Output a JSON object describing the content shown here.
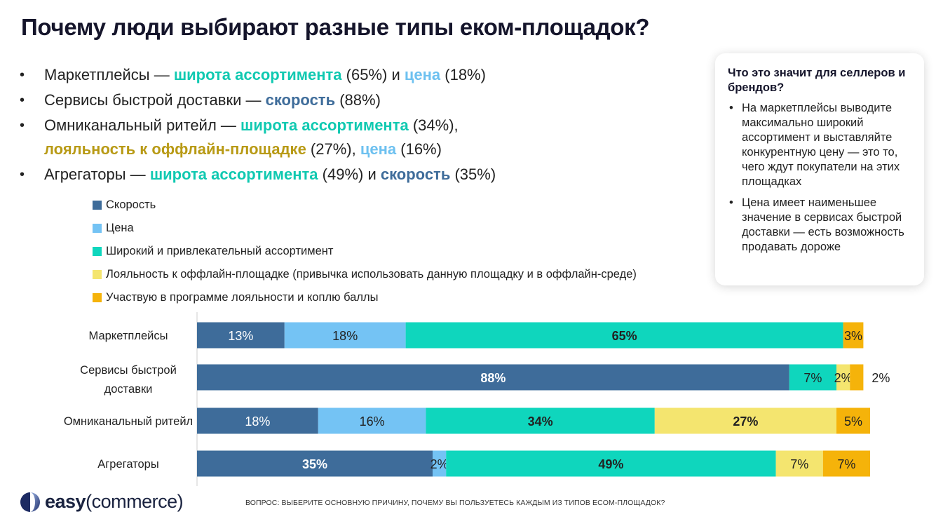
{
  "title": "Почему люди выбирают разные типы еком-площадок?",
  "bullets": [
    {
      "parts": [
        {
          "text": "Маркетплейсы — ",
          "cls": ""
        },
        {
          "text": "широта ассортимента",
          "cls": "k-assort"
        },
        {
          "text": " (65%) и ",
          "cls": ""
        },
        {
          "text": "цена",
          "cls": "k-price"
        },
        {
          "text": " (18%)",
          "cls": ""
        }
      ]
    },
    {
      "parts": [
        {
          "text": "Сервисы быстрой доставки — ",
          "cls": ""
        },
        {
          "text": "скорость",
          "cls": "k-speed"
        },
        {
          "text": " (88%)",
          "cls": ""
        }
      ]
    },
    {
      "parts": [
        {
          "text": "Омниканальный ритейл — ",
          "cls": ""
        },
        {
          "text": "широта ассортимента",
          "cls": "k-assort"
        },
        {
          "text": " (34%),",
          "cls": ""
        },
        {
          "text": "\n",
          "cls": "br"
        },
        {
          "text": "лояльность к оффлайн-площадке",
          "cls": "k-loyal"
        },
        {
          "text": " (27%), ",
          "cls": ""
        },
        {
          "text": "цена",
          "cls": "k-price"
        },
        {
          "text": " (16%)",
          "cls": ""
        }
      ]
    },
    {
      "parts": [
        {
          "text": "Агрегаторы — ",
          "cls": ""
        },
        {
          "text": "широта ассортимента",
          "cls": "k-assort"
        },
        {
          "text": " (49%) и ",
          "cls": ""
        },
        {
          "text": "скорость",
          "cls": "k-speed"
        },
        {
          "text": " (35%)",
          "cls": ""
        }
      ]
    }
  ],
  "callout": {
    "title": "Что это значит для селлеров и брендов?",
    "items": [
      "На маркетплейсы выводите максимально широкий ассортимент и выставляйте конкурентную цену — это то, чего ждут покупатели на этих площадках",
      "Цена имеет наименьшее значение в сервисах быстрой доставки — есть возможность продавать дороже"
    ]
  },
  "colors": {
    "speed": "#3e6c9a",
    "price": "#74c3f4",
    "assortment": "#0fd6bd",
    "loyalty_offline": "#f4e56f",
    "loyalty_program": "#f5b30a"
  },
  "chart_data": {
    "type": "bar",
    "orientation": "horizontal",
    "stacked": true,
    "categories": [
      "Маркетплейсы",
      "Сервисы быстрой доставки",
      "Омниканальный ритейл",
      "Агрегаторы"
    ],
    "series": [
      {
        "name": "Скорость",
        "color": "#3e6c9a",
        "values": [
          13,
          88,
          18,
          35
        ]
      },
      {
        "name": "Цена",
        "color": "#74c3f4",
        "values": [
          18,
          0,
          16,
          2
        ]
      },
      {
        "name": "Широкий и привлекательный ассортимент",
        "color": "#0fd6bd",
        "values": [
          65,
          7,
          34,
          49
        ]
      },
      {
        "name": "Лояльность к оффлайн-площадке (привычка использовать данную площадку и в оффлайн-среде)",
        "color": "#f4e56f",
        "values": [
          0,
          2,
          27,
          7
        ]
      },
      {
        "name": "Участвую в программе лояльности и коплю баллы",
        "color": "#f5b30a",
        "values": [
          3,
          2,
          5,
          7
        ]
      }
    ],
    "legend_position": "top-left",
    "grid": false
  },
  "footer": {
    "brand_main": "easy",
    "brand_paren_open": "(",
    "brand_sub": "commerce",
    "brand_paren_close": ")",
    "question": "ВОПРОС: ВЫБЕРИТЕ ОСНОВНУЮ ПРИЧИНУ, ПОЧЕМУ ВЫ ПОЛЬЗУЕТЕСЬ КАЖДЫМ ИЗ ТИПОВ ECOM-ПЛОЩАДОК?"
  }
}
